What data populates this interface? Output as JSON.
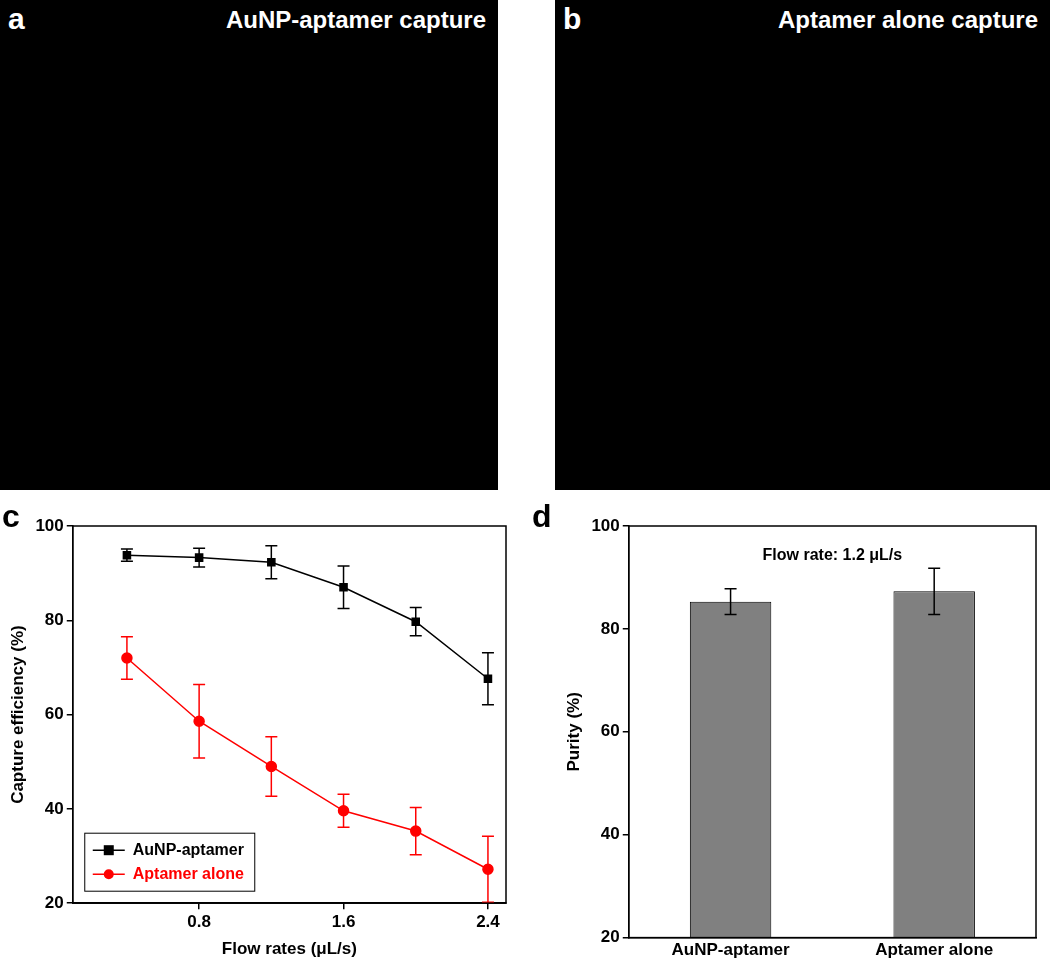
{
  "images": [
    {
      "panel": "a",
      "title": "AuNP-aptamer capture"
    },
    {
      "panel": "b",
      "title": "Aptamer alone capture"
    }
  ],
  "chart_data": [
    {
      "panel": "c",
      "type": "line",
      "x_label": "Flow rates (μL/s)",
      "y_label": "Capture efficiency (%)",
      "x": [
        0.4,
        0.8,
        1.2,
        1.6,
        2.0,
        2.4
      ],
      "series": [
        {
          "name": "AuNP-aptamer",
          "color": "#000000",
          "marker": "square",
          "values": [
            93.8,
            93.3,
            92.3,
            87.0,
            79.7,
            67.6
          ],
          "errors": [
            1.3,
            2.0,
            3.5,
            4.5,
            3.0,
            5.5
          ]
        },
        {
          "name": "Aptamer alone",
          "color": "#ff0000",
          "marker": "circle",
          "values": [
            72.0,
            58.6,
            49.0,
            39.6,
            35.3,
            27.2
          ],
          "errors": [
            4.5,
            7.8,
            6.3,
            3.5,
            5.0,
            7.0
          ]
        }
      ],
      "xlim": [
        0.1,
        2.5
      ],
      "xticks": [
        0.8,
        1.6,
        2.4
      ],
      "ylim": [
        20,
        100
      ],
      "yticks": [
        20,
        40,
        60,
        80,
        100
      ],
      "grid": false,
      "legend": "lower left"
    },
    {
      "panel": "d",
      "type": "bar",
      "annotation": "Flow rate: 1.2 μL/s",
      "y_label": "Purity (%)",
      "categories": [
        "AuNP-aptamer",
        "Aptamer alone"
      ],
      "values": [
        85.3,
        87.3
      ],
      "errors": [
        2.5,
        4.5
      ],
      "color": "#808080",
      "ylim": [
        20,
        100
      ],
      "yticks": [
        20,
        40,
        60,
        80,
        100
      ],
      "grid": false
    }
  ]
}
